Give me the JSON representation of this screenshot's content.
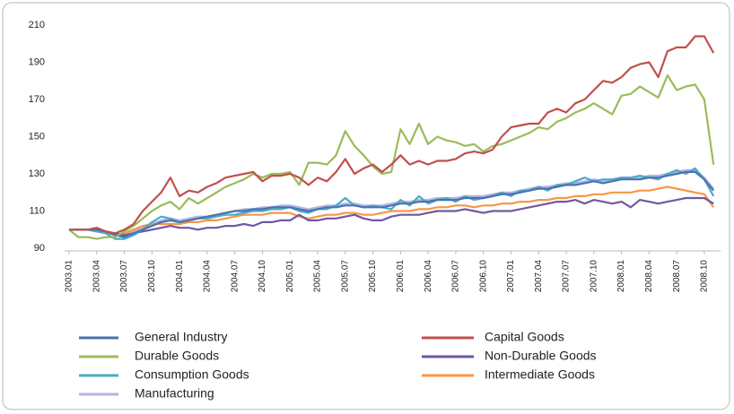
{
  "chart_data": {
    "type": "line",
    "categories": [
      "2003.01",
      null,
      null,
      "2003.04",
      null,
      null,
      "2003.07",
      null,
      null,
      "2003.10",
      null,
      null,
      "2004.01",
      null,
      null,
      "2004.04",
      null,
      null,
      "2004.07",
      null,
      null,
      "2004.10",
      null,
      null,
      "2005.01",
      null,
      null,
      "2005.04",
      null,
      null,
      "2005.07",
      null,
      null,
      "2005.10",
      null,
      null,
      "2006.01",
      null,
      null,
      "2006.04",
      null,
      null,
      "2006.07",
      null,
      null,
      "2006.10",
      null,
      null,
      "2007.01",
      null,
      null,
      "2007.04",
      null,
      null,
      "2007.07",
      null,
      null,
      "2007.10",
      null,
      null,
      "2008.01",
      null,
      null,
      "2008.04",
      null,
      null,
      "2008.07",
      null,
      null,
      "2008.10",
      null
    ],
    "ylim": [
      90,
      210
    ],
    "yticks": [
      90,
      110,
      130,
      150,
      170,
      190,
      210
    ],
    "grid": false,
    "series": [
      {
        "name": "General Industry",
        "color": "#4a72b0",
        "values": [
          100,
          100,
          100,
          100,
          99,
          97,
          96,
          98,
          100,
          102,
          104,
          105,
          104,
          105,
          106,
          107,
          108,
          109,
          110,
          110,
          111,
          111,
          112,
          112,
          112,
          111,
          110,
          111,
          112,
          112,
          113,
          113,
          112,
          112,
          112,
          113,
          114,
          114,
          115,
          115,
          116,
          116,
          116,
          117,
          117,
          117,
          118,
          119,
          119,
          120,
          121,
          122,
          122,
          123,
          124,
          124,
          125,
          126,
          125,
          126,
          127,
          127,
          127,
          128,
          128,
          129,
          130,
          131,
          131,
          127,
          121
        ]
      },
      {
        "name": "Capital Goods",
        "color": "#c0504d",
        "values": [
          100,
          100,
          100,
          101,
          99,
          98,
          100,
          103,
          110,
          115,
          120,
          128,
          118,
          121,
          120,
          123,
          125,
          128,
          129,
          130,
          131,
          126,
          129,
          129,
          130,
          128,
          124,
          128,
          126,
          131,
          138,
          130,
          133,
          135,
          131,
          135,
          140,
          135,
          137,
          135,
          137,
          137,
          138,
          141,
          142,
          141,
          143,
          150,
          155,
          156,
          157,
          157,
          163,
          165,
          163,
          168,
          170,
          175,
          180,
          179,
          182,
          187,
          189,
          190,
          182,
          196,
          198,
          198,
          204,
          204,
          195
        ]
      },
      {
        "name": "Durable Goods",
        "color": "#9bbb59",
        "values": [
          100,
          96,
          96,
          95,
          96,
          96,
          99,
          102,
          106,
          110,
          113,
          115,
          111,
          117,
          114,
          117,
          120,
          123,
          125,
          127,
          130,
          128,
          130,
          130,
          131,
          124,
          136,
          136,
          135,
          140,
          153,
          145,
          140,
          134,
          130,
          131,
          154,
          146,
          157,
          146,
          150,
          148,
          147,
          145,
          146,
          142,
          145,
          146,
          148,
          150,
          152,
          155,
          154,
          158,
          160,
          163,
          165,
          168,
          165,
          162,
          172,
          173,
          177,
          174,
          171,
          183,
          175,
          177,
          178,
          170,
          135
        ]
      },
      {
        "name": "Non-Durable Goods",
        "color": "#7057a3",
        "values": [
          100,
          100,
          100,
          99,
          99,
          98,
          97,
          98,
          99,
          100,
          101,
          102,
          101,
          101,
          100,
          101,
          101,
          102,
          102,
          103,
          102,
          104,
          104,
          105,
          105,
          108,
          105,
          105,
          106,
          106,
          107,
          108,
          106,
          105,
          105,
          107,
          108,
          108,
          108,
          109,
          110,
          110,
          110,
          111,
          110,
          109,
          110,
          110,
          110,
          111,
          112,
          113,
          114,
          115,
          115,
          116,
          114,
          116,
          115,
          114,
          115,
          112,
          116,
          115,
          114,
          115,
          116,
          117,
          117,
          117,
          114
        ]
      },
      {
        "name": "Consumption Goods",
        "color": "#4bacc6",
        "values": [
          100,
          100,
          100,
          99,
          98,
          95,
          95,
          97,
          100,
          104,
          107,
          106,
          104,
          105,
          106,
          106,
          107,
          108,
          108,
          109,
          110,
          110,
          111,
          111,
          112,
          110,
          109,
          111,
          111,
          113,
          117,
          113,
          112,
          113,
          112,
          111,
          116,
          113,
          118,
          114,
          116,
          117,
          115,
          118,
          116,
          117,
          118,
          120,
          118,
          121,
          121,
          123,
          121,
          124,
          124,
          126,
          128,
          126,
          127,
          127,
          128,
          128,
          129,
          128,
          127,
          130,
          132,
          130,
          133,
          127,
          118
        ]
      },
      {
        "name": "Intermediate Goods",
        "color": "#f79646",
        "values": [
          100,
          100,
          100,
          100,
          99,
          97,
          98,
          100,
          102,
          103,
          103,
          103,
          103,
          104,
          104,
          105,
          105,
          106,
          107,
          108,
          108,
          108,
          109,
          109,
          109,
          107,
          106,
          107,
          108,
          108,
          109,
          109,
          108,
          108,
          109,
          110,
          110,
          110,
          111,
          111,
          112,
          112,
          113,
          113,
          112,
          113,
          113,
          114,
          114,
          115,
          115,
          116,
          116,
          117,
          117,
          118,
          118,
          119,
          119,
          120,
          120,
          120,
          121,
          121,
          122,
          123,
          122,
          121,
          120,
          119,
          112
        ]
      },
      {
        "name": "Manufacturing",
        "color": "#b3b3e6",
        "values": [
          100,
          100,
          100,
          100,
          99,
          97,
          97,
          99,
          101,
          103,
          105,
          106,
          105,
          106,
          107,
          107,
          108,
          109,
          110,
          111,
          111,
          112,
          112,
          113,
          113,
          112,
          111,
          112,
          113,
          113,
          114,
          114,
          113,
          113,
          113,
          114,
          115,
          115,
          116,
          116,
          117,
          117,
          117,
          118,
          118,
          118,
          119,
          120,
          120,
          121,
          122,
          123,
          123,
          124,
          125,
          125,
          126,
          127,
          126,
          127,
          128,
          128,
          128,
          129,
          129,
          130,
          131,
          132,
          132,
          128,
          122
        ]
      }
    ]
  }
}
